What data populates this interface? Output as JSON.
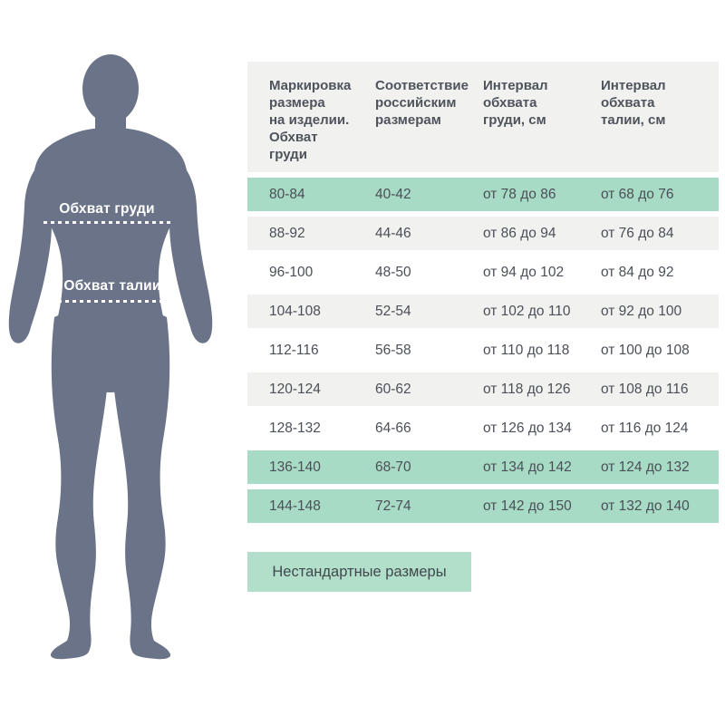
{
  "figure": {
    "chest_label": "Обхват груди",
    "waist_label": "Обхват талии",
    "silhouette": "male-body-front-view",
    "body_color": "#6a7388",
    "line_color": "#ffffff"
  },
  "table": {
    "headers": [
      "Маркировка\nразмера\nна изделии.\nОбхват\nгруди",
      "Соответствие\nроссийским\nразмерам",
      "Интервал\nобхвата\nгруди, см",
      "Интервал\nобхвата\nталии, см"
    ],
    "rows": [
      {
        "variant": "highlight",
        "cells": [
          "80-84",
          "40-42",
          "от 78 до 86",
          "от 68 до 76"
        ]
      },
      {
        "variant": "alt",
        "cells": [
          "88-92",
          "44-46",
          "от 86 до 94",
          "от 76 до 84"
        ]
      },
      {
        "variant": "plain",
        "cells": [
          "96-100",
          "48-50",
          "от 94 до 102",
          "от 84 до 92"
        ]
      },
      {
        "variant": "alt",
        "cells": [
          "104-108",
          "52-54",
          "от 102 до 110",
          "от 92 до 100"
        ]
      },
      {
        "variant": "plain",
        "cells": [
          "112-116",
          "56-58",
          "от 110 до 118",
          "от 100 до 108"
        ]
      },
      {
        "variant": "alt",
        "cells": [
          "120-124",
          "60-62",
          "от 118 до 126",
          "от 108 до 116"
        ]
      },
      {
        "variant": "plain",
        "cells": [
          "128-132",
          "64-66",
          "от 126 до 134",
          "от 116 до 124"
        ]
      },
      {
        "variant": "highlight",
        "cells": [
          "136-140",
          "68-70",
          "от 134 до 142",
          "от 124 до 132"
        ]
      },
      {
        "variant": "highlight",
        "cells": [
          "144-148",
          "72-74",
          "от 142 до 150",
          "от 132 до 140"
        ]
      }
    ]
  },
  "button": {
    "label": "Нестандартные размеры"
  },
  "colors": {
    "highlight_row": "#a7dbc5",
    "alt_row": "#f1f1ef",
    "header_bg": "#f1f1ef",
    "button_bg": "#b2dfca",
    "text": "#4b4f57",
    "body": "#6a7388"
  }
}
